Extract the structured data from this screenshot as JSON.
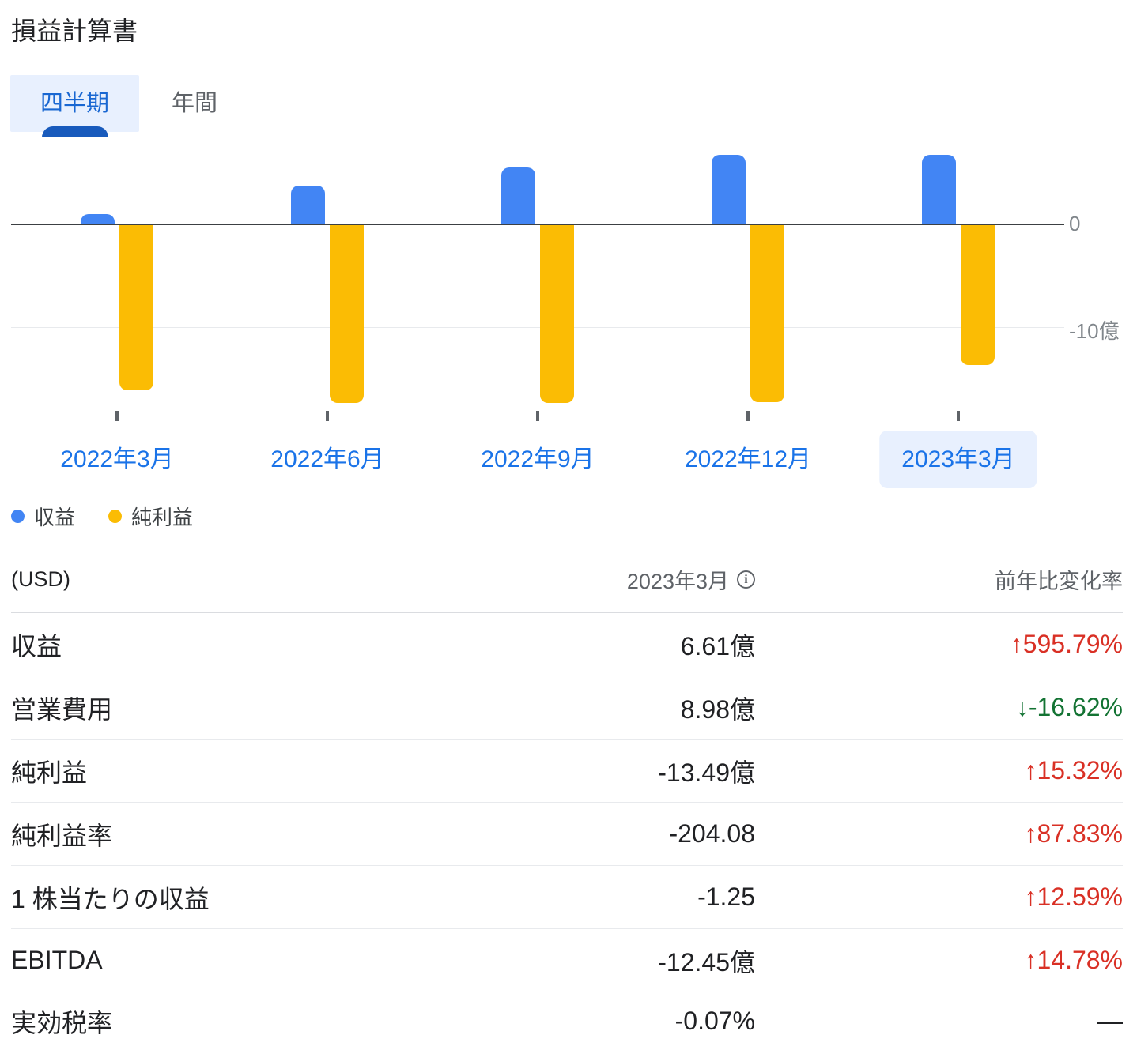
{
  "header": {
    "title": "損益計算書"
  },
  "tabs": {
    "quarterly": "四半期",
    "annual": "年間",
    "selected": "四半期"
  },
  "chart_data": {
    "type": "bar",
    "categories": [
      "2022年3月",
      "2022年6月",
      "2022年9月",
      "2022年12月",
      "2023年3月"
    ],
    "series": [
      {
        "key": "revenue",
        "name": "収益",
        "color": "#4285f4",
        "values": [
          0.95,
          3.66,
          5.42,
          6.65,
          6.61
        ]
      },
      {
        "key": "net-income",
        "name": "純利益",
        "color": "#fbbc04",
        "values": [
          -15.93,
          -17.2,
          -17.2,
          -17.1,
          -13.49
        ]
      }
    ],
    "unit": "億",
    "selected_category": "2023年3月",
    "y_axis": {
      "zero_label": "0",
      "neg_label": "-10億",
      "neg_value": -10
    },
    "ylim": [
      -18,
      7
    ],
    "grid": true,
    "legend_position": "bottom-left"
  },
  "table": {
    "currency_label": "(USD)",
    "period_label": "2023年3月",
    "info_icon_glyph": "i",
    "change_label": "前年比変化率",
    "colors": {
      "up_red": "#d93025",
      "down_green": "#137333",
      "neutral": "#202124"
    },
    "rows": [
      {
        "label": "収益",
        "value": "6.61億",
        "change": "↑595.79%",
        "change_color": "#d93025"
      },
      {
        "label": "営業費用",
        "value": "8.98億",
        "change": "↓-16.62%",
        "change_color": "#137333"
      },
      {
        "label": "純利益",
        "value": "-13.49億",
        "change": "↑15.32%",
        "change_color": "#d93025"
      },
      {
        "label": "純利益率",
        "value": "-204.08",
        "change": "↑87.83%",
        "change_color": "#d93025"
      },
      {
        "label": "1 株当たりの収益",
        "value": "-1.25",
        "change": "↑12.59%",
        "change_color": "#d93025"
      },
      {
        "label": "EBITDA",
        "value": "-12.45億",
        "change": "↑14.78%",
        "change_color": "#d93025"
      },
      {
        "label": "実効税率",
        "value": "-0.07%",
        "change": "—",
        "change_color": "#202124"
      }
    ]
  }
}
